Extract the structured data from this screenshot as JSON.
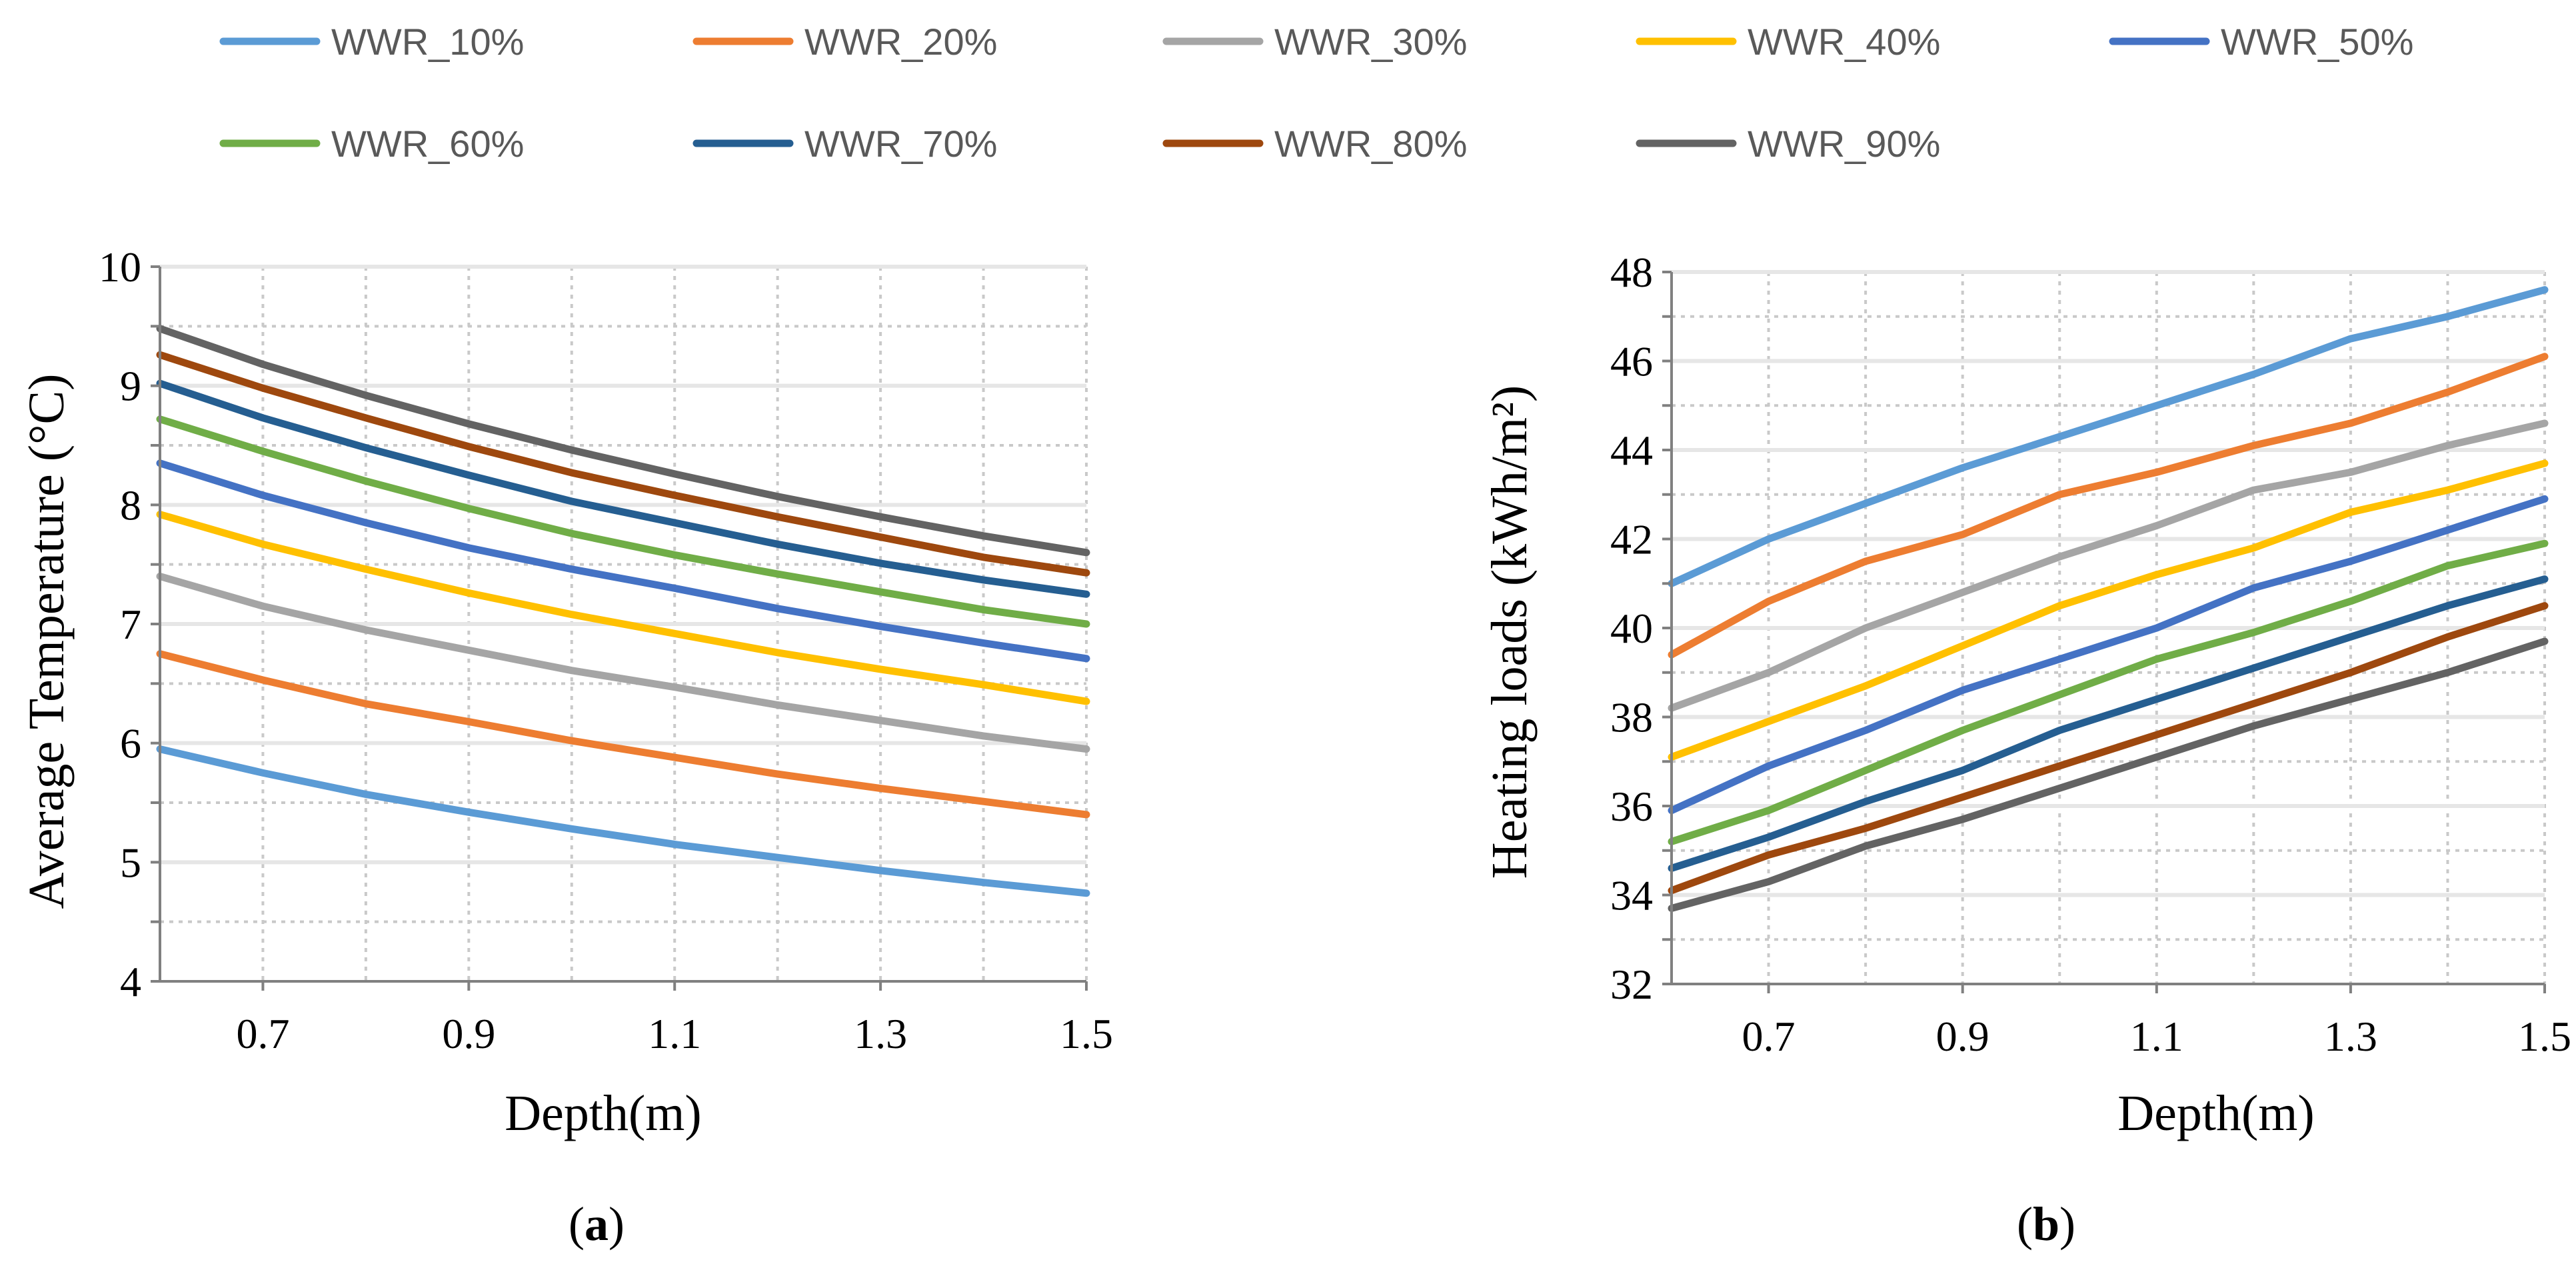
{
  "legend": [
    {
      "name": "WWR_10%",
      "color": "#5B9BD5"
    },
    {
      "name": "WWR_20%",
      "color": "#ED7D31"
    },
    {
      "name": "WWR_30%",
      "color": "#A5A5A5"
    },
    {
      "name": "WWR_40%",
      "color": "#FFC000"
    },
    {
      "name": "WWR_50%",
      "color": "#4472C4"
    },
    {
      "name": "WWR_60%",
      "color": "#70AD47"
    },
    {
      "name": "WWR_70%",
      "color": "#255E91"
    },
    {
      "name": "WWR_80%",
      "color": "#9E480E"
    },
    {
      "name": "WWR_90%",
      "color": "#636363"
    }
  ],
  "chart_data": [
    {
      "panel": "a",
      "panel_label": {
        "open": "(",
        "letter": "a",
        "close": ")"
      },
      "type": "line",
      "xlabel": "Depth(m)",
      "ylabel": "Average Temperature (°C)",
      "x": [
        0.6,
        0.7,
        0.8,
        0.9,
        1.0,
        1.1,
        1.2,
        1.3,
        1.4,
        1.5
      ],
      "xlim": [
        0.6,
        1.5
      ],
      "ylim": [
        4,
        10
      ],
      "x_ticks": [
        0.7,
        0.9,
        1.1,
        1.3,
        1.5
      ],
      "x_tick_labels": [
        "0.7",
        "0.9",
        "1.1",
        "1.3",
        "1.5"
      ],
      "y_ticks": [
        4,
        5,
        6,
        7,
        8,
        9,
        10
      ],
      "y_tick_labels": [
        "4",
        "5",
        "6",
        "7",
        "8",
        "9",
        "10"
      ],
      "series": [
        {
          "name": "WWR_10%",
          "values": [
            5.95,
            5.75,
            5.57,
            5.42,
            5.28,
            5.15,
            5.04,
            4.93,
            4.83,
            4.74
          ]
        },
        {
          "name": "WWR_20%",
          "values": [
            6.75,
            6.53,
            6.33,
            6.18,
            6.02,
            5.88,
            5.74,
            5.62,
            5.51,
            5.4
          ]
        },
        {
          "name": "WWR_30%",
          "values": [
            7.4,
            7.15,
            6.95,
            6.78,
            6.61,
            6.47,
            6.32,
            6.19,
            6.06,
            5.95
          ]
        },
        {
          "name": "WWR_40%",
          "values": [
            7.92,
            7.67,
            7.46,
            7.26,
            7.08,
            6.92,
            6.76,
            6.62,
            6.49,
            6.35
          ]
        },
        {
          "name": "WWR_50%",
          "values": [
            8.35,
            8.08,
            7.85,
            7.64,
            7.46,
            7.3,
            7.13,
            6.98,
            6.84,
            6.71
          ]
        },
        {
          "name": "WWR_60%",
          "values": [
            8.72,
            8.45,
            8.2,
            7.97,
            7.76,
            7.58,
            7.42,
            7.27,
            7.12,
            7.0
          ]
        },
        {
          "name": "WWR_70%",
          "values": [
            9.02,
            8.73,
            8.48,
            8.25,
            8.03,
            7.85,
            7.67,
            7.51,
            7.37,
            7.25
          ]
        },
        {
          "name": "WWR_80%",
          "values": [
            9.26,
            8.98,
            8.73,
            8.49,
            8.27,
            8.08,
            7.9,
            7.73,
            7.56,
            7.43
          ]
        },
        {
          "name": "WWR_90%",
          "values": [
            9.48,
            9.18,
            8.92,
            8.68,
            8.46,
            8.26,
            8.07,
            7.9,
            7.74,
            7.6
          ]
        }
      ]
    },
    {
      "panel": "b",
      "panel_label": {
        "open": "(",
        "letter": "b",
        "close": ")"
      },
      "type": "line",
      "xlabel": "Depth(m)",
      "ylabel": "Heating loads (kWh/m²)",
      "x": [
        0.6,
        0.7,
        0.8,
        0.9,
        1.0,
        1.1,
        1.2,
        1.3,
        1.4,
        1.5
      ],
      "xlim": [
        0.6,
        1.5
      ],
      "ylim": [
        32,
        48
      ],
      "x_ticks": [
        0.7,
        0.9,
        1.1,
        1.3,
        1.5
      ],
      "x_tick_labels": [
        "0.7",
        "0.9",
        "1.1",
        "1.3",
        "1.5"
      ],
      "y_ticks": [
        32,
        34,
        36,
        38,
        40,
        42,
        44,
        46,
        48
      ],
      "y_tick_labels": [
        "32",
        "34",
        "36",
        "38",
        "40",
        "42",
        "44",
        "46",
        "48"
      ],
      "series": [
        {
          "name": "WWR_10%",
          "values": [
            41.0,
            42.0,
            42.8,
            43.6,
            44.3,
            45.0,
            45.7,
            46.5,
            47.0,
            47.6
          ]
        },
        {
          "name": "WWR_20%",
          "values": [
            39.4,
            40.6,
            41.5,
            42.1,
            43.0,
            43.5,
            44.1,
            44.6,
            45.3,
            46.1
          ]
        },
        {
          "name": "WWR_30%",
          "values": [
            38.2,
            39.0,
            40.0,
            40.8,
            41.6,
            42.3,
            43.1,
            43.5,
            44.1,
            44.6
          ]
        },
        {
          "name": "WWR_40%",
          "values": [
            37.1,
            37.9,
            38.7,
            39.6,
            40.5,
            41.2,
            41.8,
            42.6,
            43.1,
            43.7
          ]
        },
        {
          "name": "WWR_50%",
          "values": [
            35.9,
            36.9,
            37.7,
            38.6,
            39.3,
            40.0,
            40.9,
            41.5,
            42.2,
            42.9
          ]
        },
        {
          "name": "WWR_60%",
          "values": [
            35.2,
            35.9,
            36.8,
            37.7,
            38.5,
            39.3,
            39.9,
            40.6,
            41.4,
            41.9
          ]
        },
        {
          "name": "WWR_70%",
          "values": [
            34.6,
            35.3,
            36.1,
            36.8,
            37.7,
            38.4,
            39.1,
            39.8,
            40.5,
            41.1
          ]
        },
        {
          "name": "WWR_80%",
          "values": [
            34.1,
            34.9,
            35.5,
            36.2,
            36.9,
            37.6,
            38.3,
            39.0,
            39.8,
            40.5
          ]
        },
        {
          "name": "WWR_90%",
          "values": [
            33.7,
            34.3,
            35.1,
            35.7,
            36.4,
            37.1,
            37.8,
            38.4,
            39.0,
            39.7
          ]
        }
      ]
    }
  ]
}
